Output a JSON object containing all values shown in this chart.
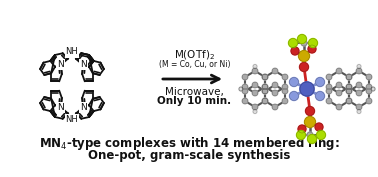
{
  "bg_color": "#ffffff",
  "text_color": "#111111",
  "caption_line1": "MN$_4$-type complexes with 14 membered ring:",
  "caption_line2": "One-pot, gram-scale synthesis",
  "reagent": "M(OTf)$_2$",
  "reagent_sub": "(M = Co, Cu, or Ni)",
  "condition1": "Microwave,",
  "condition2": "Only 10 min.",
  "metal_color": "#5060c0",
  "N_color": "#8899dd",
  "C_color": "#aaaaaa",
  "H_color": "#dddddd",
  "O_color": "#cc2222",
  "S_color": "#ccaa00",
  "F_color": "#aadd00",
  "bond_color": "#555555"
}
